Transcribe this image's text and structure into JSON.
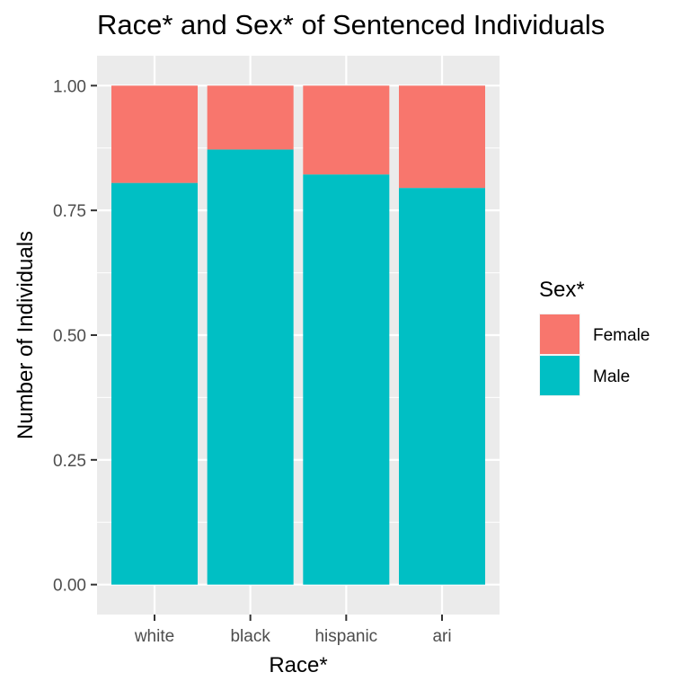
{
  "chart_data": {
    "type": "bar",
    "stacked": true,
    "title": "Race* and Sex* of Sentenced Individuals",
    "xlabel": "Race*",
    "ylabel": "Number of Individuals",
    "categories": [
      "white",
      "black",
      "hispanic",
      "ari"
    ],
    "series": [
      {
        "name": "Female",
        "values": [
          0.195,
          0.128,
          0.178,
          0.205
        ],
        "color": "#F8766D"
      },
      {
        "name": "Male",
        "values": [
          0.805,
          0.872,
          0.822,
          0.795
        ],
        "color": "#00BFC4"
      }
    ],
    "ylim": [
      -0.06,
      1.06
    ],
    "yticks": [
      0.0,
      0.25,
      0.5,
      0.75,
      1.0
    ],
    "ytick_labels": [
      "0.00",
      "0.25",
      "0.50",
      "0.75",
      "1.00"
    ],
    "grid": true,
    "panel_background": "#EBEBEB",
    "legend": {
      "title": "Sex*",
      "position": "right",
      "entries": [
        "Female",
        "Male"
      ]
    }
  }
}
